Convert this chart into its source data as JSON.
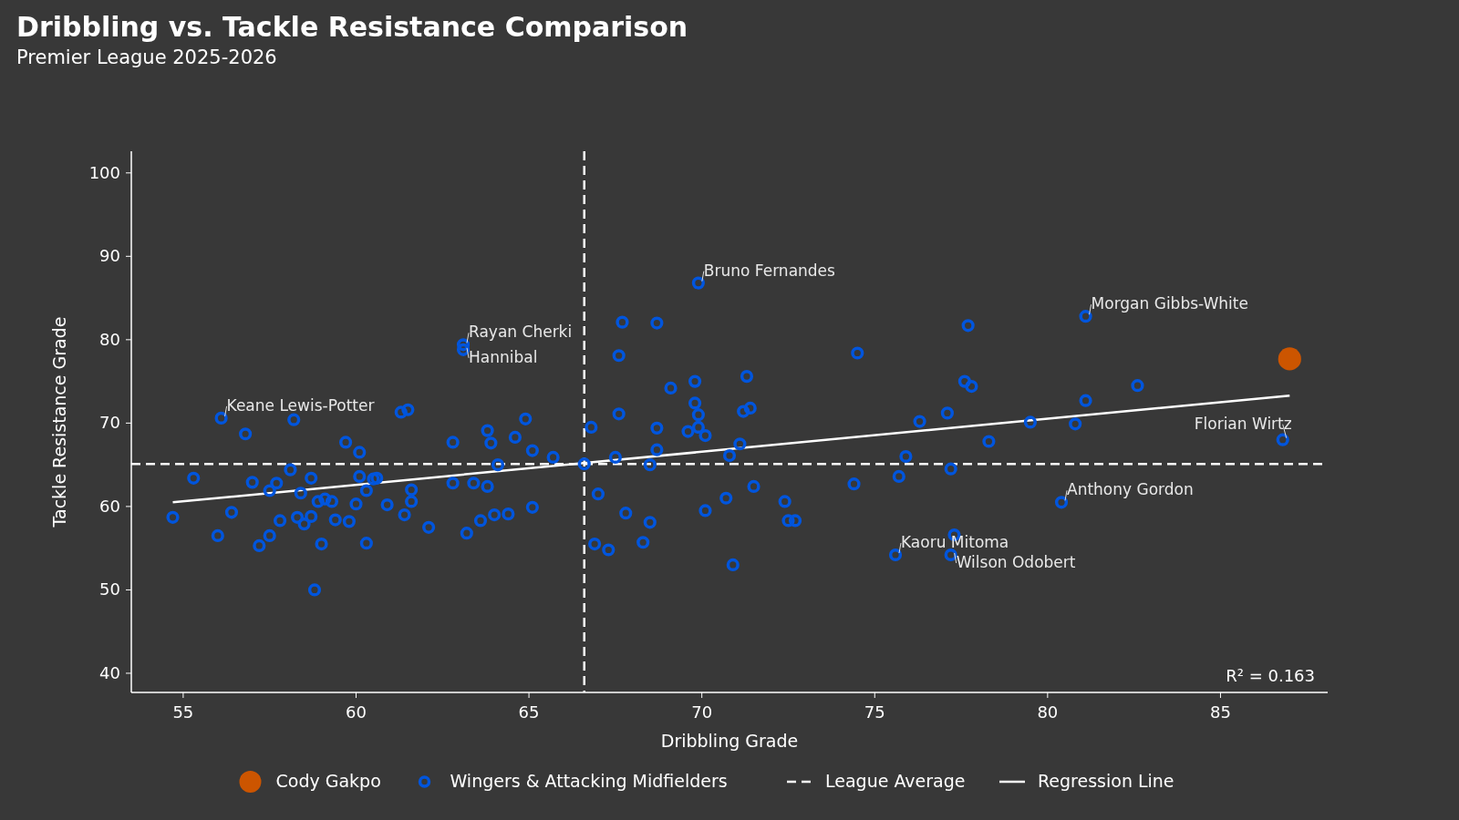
{
  "chart_data": {
    "type": "scatter",
    "title": "Dribbling vs. Tackle Resistance Comparison",
    "subtitle": "Premier League 2025-2026",
    "xlabel": "Dribbling Grade",
    "ylabel": "Tackle Resistance Grade",
    "xlim": [
      53.5,
      88.1
    ],
    "ylim": [
      37.7,
      102.6
    ],
    "xticks": [
      55,
      60,
      65,
      70,
      75,
      80,
      85
    ],
    "yticks": [
      40,
      50,
      60,
      70,
      80,
      90,
      100
    ],
    "grid": false,
    "legend": "bottom",
    "marker": "circle",
    "series": [
      {
        "name": "Cody Gakpo",
        "color": "#cc5500",
        "x": [
          87.0
        ],
        "values": [
          77.7
        ]
      },
      {
        "name": "Wingers & Attacking Midfielders",
        "color": "#0055dd",
        "x": [
          54.7,
          55.3,
          56.0,
          56.1,
          56.4,
          56.8,
          57.0,
          57.2,
          57.5,
          57.5,
          57.7,
          57.8,
          58.1,
          58.2,
          58.3,
          58.4,
          58.5,
          58.7,
          58.7,
          58.8,
          58.9,
          59.0,
          59.1,
          59.3,
          59.4,
          59.7,
          59.8,
          60.0,
          60.1,
          60.1,
          60.3,
          60.3,
          60.5,
          60.6,
          60.9,
          61.3,
          61.4,
          61.5,
          61.6,
          61.6,
          62.1,
          62.8,
          62.8,
          63.1,
          63.1,
          63.2,
          63.4,
          63.6,
          63.8,
          63.8,
          63.9,
          64.0,
          64.1,
          64.4,
          64.6,
          64.9,
          65.1,
          65.1,
          65.7,
          66.6,
          66.8,
          66.9,
          67.0,
          67.3,
          67.5,
          67.6,
          67.6,
          67.7,
          67.8,
          68.3,
          68.5,
          68.5,
          68.7,
          68.7,
          68.7,
          69.1,
          69.6,
          69.8,
          69.8,
          69.9,
          69.9,
          70.1,
          69.9,
          70.1,
          70.7,
          70.8,
          70.9,
          71.1,
          71.2,
          71.3,
          71.4,
          71.5,
          72.4,
          72.5,
          72.7,
          74.4,
          74.5,
          75.6,
          75.7,
          75.9,
          76.3,
          77.1,
          77.2,
          77.2,
          77.3,
          77.6,
          77.7,
          77.8,
          78.3,
          79.5,
          80.4,
          80.8,
          81.1,
          81.1,
          82.6,
          86.8
        ],
        "values": [
          58.7,
          63.4,
          56.5,
          70.6,
          59.3,
          68.7,
          62.9,
          55.3,
          61.9,
          56.5,
          62.8,
          58.3,
          64.4,
          70.4,
          58.7,
          61.6,
          57.9,
          63.4,
          58.8,
          50.0,
          60.6,
          55.5,
          60.9,
          60.6,
          58.4,
          67.7,
          58.2,
          60.3,
          63.6,
          66.5,
          55.6,
          61.9,
          63.3,
          63.4,
          60.2,
          71.3,
          59.0,
          71.6,
          62.0,
          60.6,
          57.5,
          67.7,
          62.8,
          79.4,
          78.8,
          56.8,
          62.8,
          58.3,
          69.1,
          62.4,
          67.6,
          59.0,
          65.0,
          59.1,
          68.3,
          70.5,
          66.7,
          59.9,
          65.9,
          65.1,
          69.5,
          55.5,
          61.5,
          54.8,
          65.9,
          78.1,
          71.1,
          82.1,
          59.2,
          55.7,
          65.0,
          58.1,
          82.0,
          69.4,
          66.8,
          74.2,
          69.0,
          75.0,
          72.4,
          71.0,
          69.5,
          68.5,
          86.8,
          59.5,
          61.0,
          66.1,
          53.0,
          67.5,
          71.4,
          75.6,
          71.8,
          62.4,
          60.6,
          58.3,
          58.3,
          62.7,
          78.4,
          54.2,
          63.6,
          66.0,
          70.2,
          71.2,
          64.5,
          54.2,
          56.6,
          75.0,
          81.7,
          74.4,
          67.8,
          70.1,
          60.5,
          69.9,
          82.8,
          72.7,
          74.5,
          68.0
        ]
      },
      {
        "name": "Regression Line",
        "type": "line",
        "color": "#ffffff",
        "line_style": "solid",
        "marker": "none",
        "x": [
          54.7,
          87.0
        ],
        "values": [
          60.5,
          73.3
        ]
      }
    ],
    "ref_lines": [
      {
        "axis": "x",
        "value": 66.6,
        "label": "League Average",
        "color": "#ffffff",
        "line_style": "dashed"
      },
      {
        "axis": "y",
        "value": 65.1,
        "color": "#ffffff",
        "line_style": "dashed"
      }
    ],
    "annotations": [
      {
        "text": "Bruno Fernandes",
        "x": 69.9,
        "y": 86.8
      },
      {
        "text": "Morgan Gibbs-White",
        "x": 81.1,
        "y": 82.8
      },
      {
        "text": "Rayan Cherki",
        "x": 63.1,
        "y": 79.4
      },
      {
        "text": "Hannibal",
        "x": 63.1,
        "y": 78.8
      },
      {
        "text": "Keane Lewis-Potter",
        "x": 56.1,
        "y": 70.6
      },
      {
        "text": "Florian Wirtz",
        "x": 86.8,
        "y": 68.0
      },
      {
        "text": "Anthony Gordon",
        "x": 80.4,
        "y": 60.5
      },
      {
        "text": "Kaoru Mitoma",
        "x": 75.6,
        "y": 54.2
      },
      {
        "text": "Wilson Odobert",
        "x": 77.2,
        "y": 54.2
      },
      "R² = 0.163"
    ]
  }
}
